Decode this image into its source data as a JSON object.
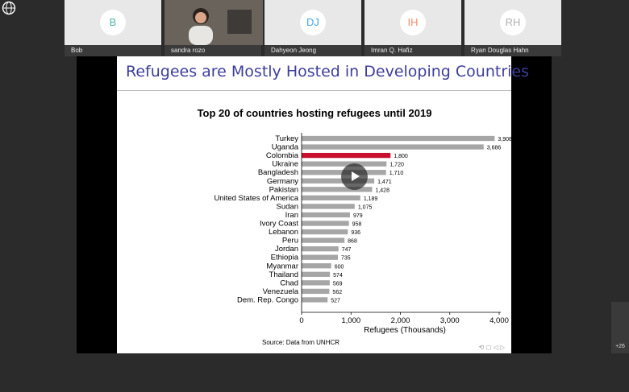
{
  "participants": [
    {
      "initials": "B",
      "name": "Bob",
      "color": "#4db6ac"
    },
    {
      "initials": "",
      "name": "sandra rozo",
      "color": "#59524d"
    },
    {
      "initials": "DJ",
      "name": "Dahyeon Jeong",
      "color": "#42a5f5"
    },
    {
      "initials": "IH",
      "name": "Imran Q. Hafiz",
      "color": "#ff8a65"
    },
    {
      "initials": "RH",
      "name": "Ryan Douglas Hahn",
      "color": "#b0b0b0"
    }
  ],
  "slide": {
    "title": "Refugees are Mostly Hosted in Developing Countries",
    "source": "Source: Data from UNHCR"
  },
  "more_count": "+26",
  "chart_data": {
    "type": "bar",
    "title": "Top 20 of countries hosting refugees until 2019",
    "xlabel": "Refugees (Thousands)",
    "ylabel": "",
    "xlim": [
      0,
      4000
    ],
    "xticks": [
      "0",
      "1,000",
      "2,000",
      "3,000",
      "4,000"
    ],
    "categories": [
      "Turkey",
      "Uganda",
      "Colombia",
      "Ukraine",
      "Bangladesh",
      "Germany",
      "Pakistan",
      "United States of America",
      "Sudan",
      "Iran",
      "Ivory Coast",
      "Lebanon",
      "Peru",
      "Jordan",
      "Ethiopia",
      "Myanmar",
      "Thailand",
      "Chad",
      "Venezuela",
      "Dem. Rep. Congo"
    ],
    "values": [
      3908,
      3686,
      1800,
      1720,
      1710,
      1471,
      1428,
      1189,
      1075,
      979,
      958,
      936,
      868,
      747,
      735,
      600,
      574,
      569,
      562,
      527
    ],
    "labels": [
      "3,908",
      "3,686",
      "1,800",
      "1,720",
      "1,710",
      "1,471",
      "1,428",
      "1,189",
      "1,075",
      "979",
      "958",
      "936",
      "868",
      "747",
      "735",
      "600",
      "574",
      "569",
      "562",
      "527"
    ],
    "highlight": "Colombia",
    "highlight_color": "#c8102e",
    "bar_color": "#a6a6a6"
  }
}
